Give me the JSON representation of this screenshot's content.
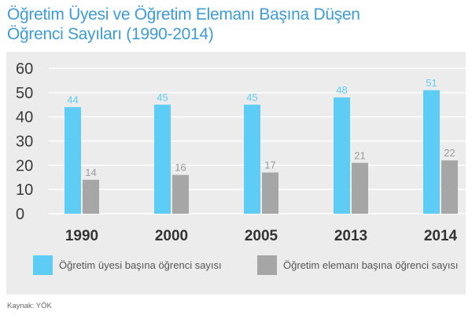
{
  "title_lines": [
    "Öğretim Üyesi ve Öğretim Elemanı Başına Düşen",
    "Öğrenci Sayıları (1990-2014)"
  ],
  "source": "Kaynak: YÖK",
  "colors": {
    "title": "#3d9bd8",
    "series1": "#5ecdf6",
    "series2": "#a6a6a6",
    "series1_label": "#5ecdf6",
    "series2_label": "#9a9a9a",
    "panel": "#ececec",
    "grid": "#ffffff"
  },
  "chart_data": {
    "type": "bar",
    "title": "Öğretim Üyesi ve Öğretim Elemanı Başına Düşen Öğrenci Sayıları (1990-2014)",
    "categories": [
      "1990",
      "2000",
      "2005",
      "2013",
      "2014"
    ],
    "series": [
      {
        "name": "Öğretim üyesi başına öğrenci sayısı",
        "values": [
          44,
          45,
          45,
          48,
          51
        ]
      },
      {
        "name": "Öğretim elemanı başına öğrenci sayısı",
        "values": [
          14,
          16,
          17,
          21,
          22
        ]
      }
    ],
    "yticks": [
      0,
      10,
      20,
      30,
      40,
      50,
      60
    ],
    "ylim": [
      0,
      60
    ],
    "xlabel": "",
    "ylabel": "",
    "grid": true,
    "legend_position": "bottom",
    "data_labels": true
  }
}
